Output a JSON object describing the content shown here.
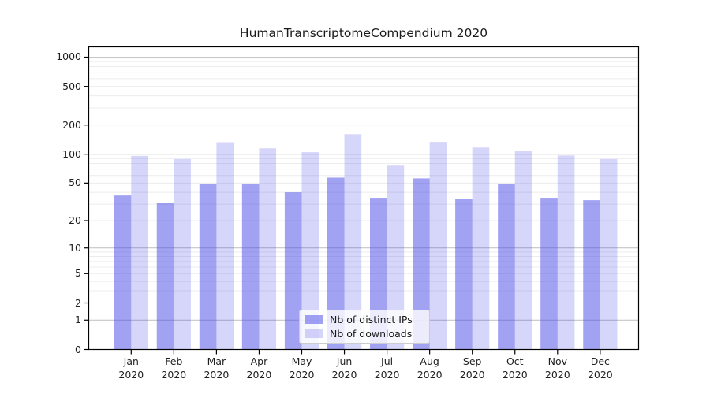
{
  "title": "HumanTranscriptomeCompendium 2020",
  "chart_data": {
    "type": "bar",
    "title": "HumanTranscriptomeCompendium 2020",
    "categories": [
      "Jan 2020",
      "Feb 2020",
      "Mar 2020",
      "Apr 2020",
      "May 2020",
      "Jun 2020",
      "Jul 2020",
      "Aug 2020",
      "Sep 2020",
      "Oct 2020",
      "Nov 2020",
      "Dec 2020"
    ],
    "series": [
      {
        "name": "Nb of distinct IPs",
        "color": "rgba(70,70,230,0.50)",
        "values": [
          37,
          31,
          49,
          49,
          40,
          57,
          35,
          56,
          34,
          49,
          35,
          33
        ]
      },
      {
        "name": "Nb of downloads",
        "color": "rgba(70,70,230,0.22)",
        "values": [
          96,
          89,
          133,
          115,
          105,
          161,
          76,
          134,
          117,
          109,
          97,
          89
        ]
      }
    ],
    "xlabel": "",
    "ylabel": "",
    "yscale": "symlog (log1p)",
    "ytick_values": [
      0,
      1,
      2,
      5,
      10,
      20,
      50,
      100,
      200,
      500,
      1000
    ],
    "ytick_labels": [
      "0",
      "1",
      "2",
      "5",
      "10",
      "20",
      "50",
      "100",
      "200",
      "500",
      "1000"
    ],
    "ylim": [
      0,
      1280
    ],
    "grid": "horizontal major (decades) + minor, drawn behind translucent bars",
    "legend_position": "inside, lower center"
  },
  "colors": {
    "ips_bar": "rgba(70,70,230,0.50)",
    "downloads_bar": "rgba(70,70,230,0.22)",
    "grid_major": "#c6c6c6",
    "grid_minor": "#ececec",
    "axis": "#000000",
    "text": "#1f1f1f",
    "legend_border": "#cccccc",
    "legend_bg": "rgba(255,255,255,0.8)"
  }
}
